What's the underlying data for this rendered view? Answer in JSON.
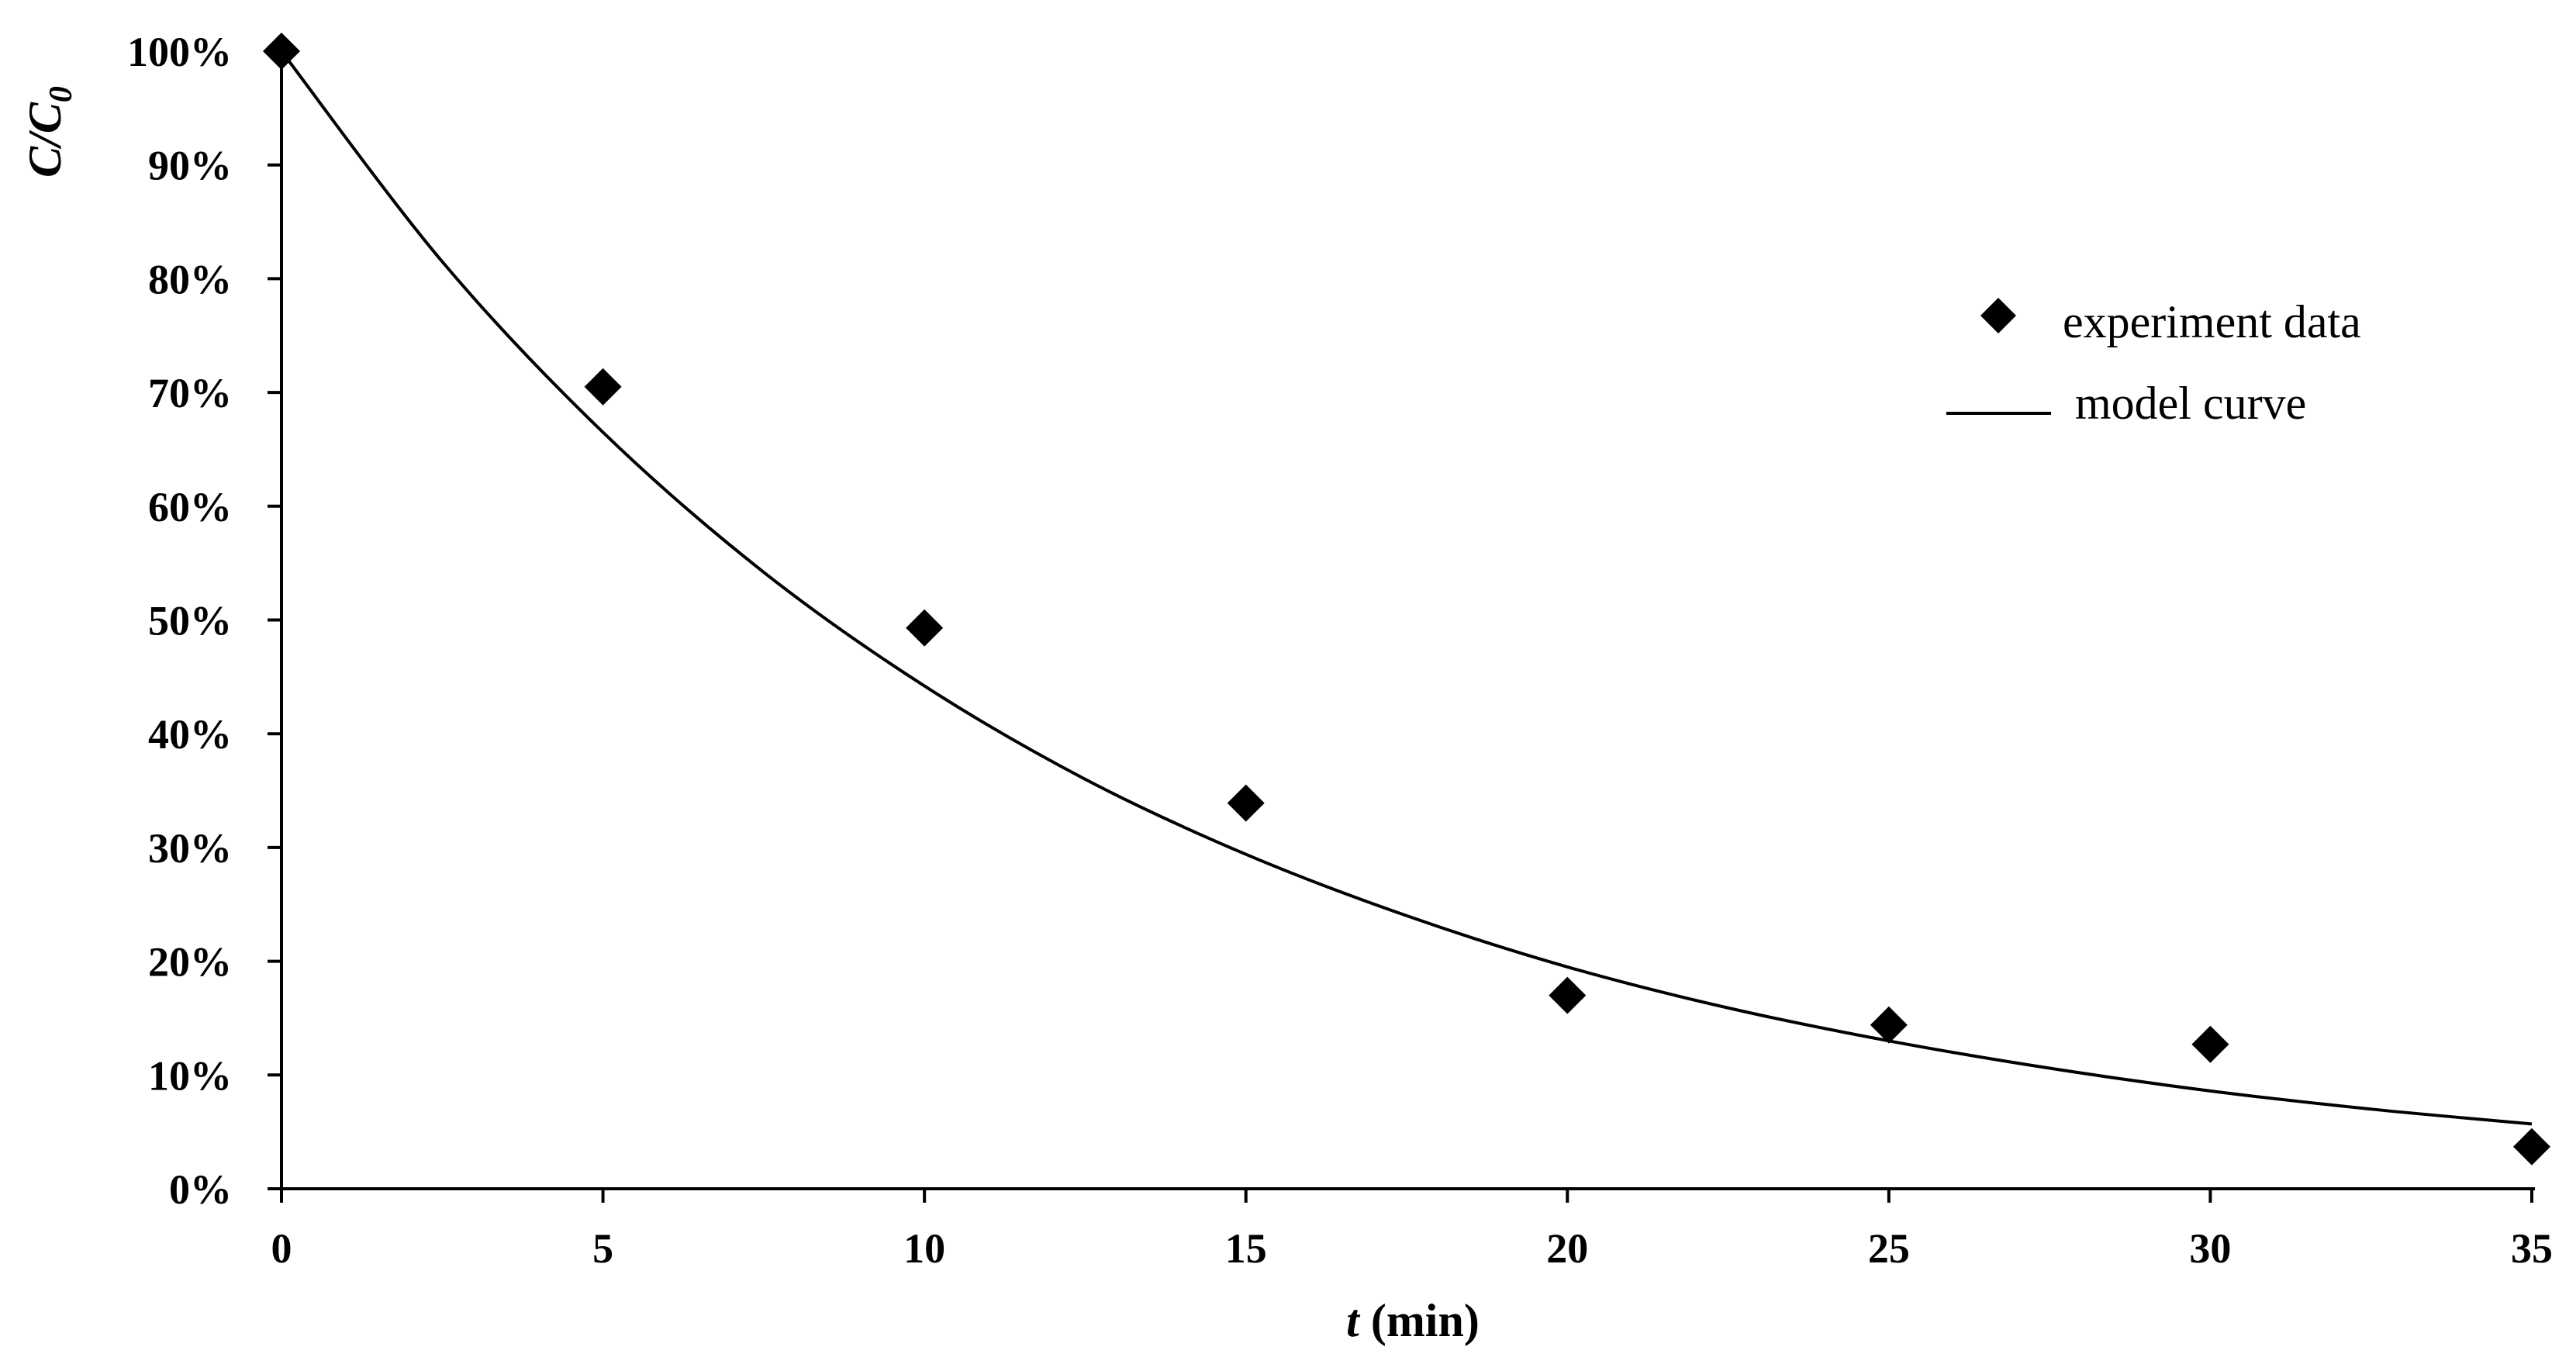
{
  "chart_data": {
    "type": "scatter",
    "title": "",
    "xlabel": {
      "var": "t",
      "rest": " (min)"
    },
    "ylabel": {
      "main": "C/C",
      "sub": "0"
    },
    "xlim": [
      0,
      35
    ],
    "ylim": [
      0,
      1
    ],
    "x_ticks": [
      "0",
      "5",
      "10",
      "15",
      "20",
      "25",
      "30",
      "35"
    ],
    "x_tick_values": [
      0,
      5,
      10,
      15,
      20,
      25,
      30,
      35
    ],
    "y_ticks": [
      "0%",
      "10%",
      "20%",
      "30%",
      "40%",
      "50%",
      "60%",
      "70%",
      "80%",
      "90%",
      "100%"
    ],
    "y_tick_values": [
      0,
      0.1,
      0.2,
      0.3,
      0.4,
      0.5,
      0.6,
      0.7,
      0.8,
      0.9,
      1.0
    ],
    "grid": false,
    "legend_position": "right",
    "colors": {
      "axis": "#000000",
      "series": "#000000"
    },
    "series": [
      {
        "name": "experiment data",
        "type": "scatter",
        "marker": "diamond",
        "x": [
          0,
          5,
          10,
          15,
          20,
          25,
          30,
          35
        ],
        "y": [
          1.0,
          0.705,
          0.493,
          0.339,
          0.17,
          0.144,
          0.127,
          0.037
        ]
      },
      {
        "name": "model curve",
        "type": "line",
        "x": [
          0,
          2.5,
          5,
          7.5,
          10,
          12.5,
          15,
          17.5,
          20,
          22.5,
          25,
          27.5,
          30,
          32.5,
          35
        ],
        "y": [
          1.0,
          0.815,
          0.665,
          0.542,
          0.442,
          0.36,
          0.294,
          0.24,
          0.195,
          0.159,
          0.13,
          0.106,
          0.086,
          0.07,
          0.057
        ]
      }
    ]
  }
}
